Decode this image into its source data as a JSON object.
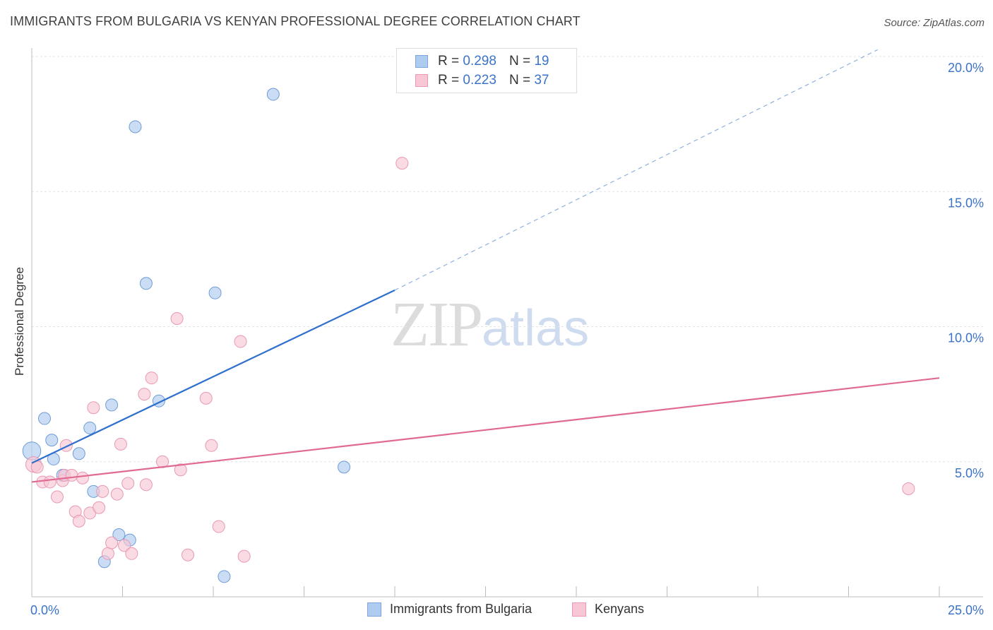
{
  "title": "IMMIGRANTS FROM BULGARIA VS KENYAN PROFESSIONAL DEGREE CORRELATION CHART",
  "source": "Source: ZipAtlas.com",
  "watermark": {
    "zip": "ZIP",
    "atlas": "atlas"
  },
  "legend": {
    "r_label": "R =",
    "n_label": "N =",
    "rows": [
      {
        "r": "0.298",
        "n": "19",
        "color": "#aecbf0",
        "border": "#7ea6dc"
      },
      {
        "r": "0.223",
        "n": "37",
        "color": "#f8c6d4",
        "border": "#e89ab2"
      }
    ]
  },
  "chart_data": {
    "type": "scatter",
    "title": "IMMIGRANTS FROM BULGARIA VS KENYAN PROFESSIONAL DEGREE CORRELATION CHART",
    "xlabel": "",
    "ylabel": "Professional Degree",
    "xlim": [
      0,
      25
    ],
    "ylim": [
      0,
      20
    ],
    "x_tick_labels": [
      "0.0%",
      "25.0%"
    ],
    "y_ticks": [
      5,
      10,
      15,
      20
    ],
    "y_tick_labels": [
      "5.0%",
      "10.0%",
      "15.0%",
      "20.0%"
    ],
    "grid": true,
    "legend_position": "top-center",
    "series": [
      {
        "name": "Immigrants from Bulgaria",
        "color": "#aecbf0",
        "edge": "#6f9bd8",
        "line_color": "#2f6fce",
        "points": [
          [
            0.0,
            5.4,
            1.5
          ],
          [
            0.35,
            6.6,
            1
          ],
          [
            0.55,
            5.8,
            1
          ],
          [
            0.6,
            5.1,
            1
          ],
          [
            0.85,
            4.5,
            1
          ],
          [
            1.3,
            5.3,
            1
          ],
          [
            1.6,
            6.25,
            1
          ],
          [
            1.7,
            3.9,
            1
          ],
          [
            2.2,
            7.1,
            1
          ],
          [
            2.0,
            1.3,
            1
          ],
          [
            2.4,
            2.3,
            1
          ],
          [
            2.7,
            2.1,
            1
          ],
          [
            2.85,
            17.4,
            1
          ],
          [
            3.15,
            11.6,
            1
          ],
          [
            3.5,
            7.25,
            1
          ],
          [
            5.05,
            11.25,
            1
          ],
          [
            5.3,
            0.75,
            1
          ],
          [
            6.65,
            18.6,
            1
          ],
          [
            8.6,
            4.8,
            1
          ]
        ],
        "trend": {
          "x": [
            0.0,
            10.0
          ],
          "y": [
            4.95,
            11.35
          ]
        },
        "trend_dashed": {
          "x": [
            10.0,
            23.3
          ],
          "y": [
            11.35,
            20.25
          ]
        }
      },
      {
        "name": "Kenyans",
        "color": "#f8c6d4",
        "edge": "#e89ab2",
        "line_color": "#e06a92",
        "points": [
          [
            0.05,
            4.9,
            1.3
          ],
          [
            0.15,
            4.8,
            1
          ],
          [
            0.3,
            4.25,
            1
          ],
          [
            0.5,
            4.25,
            1
          ],
          [
            0.7,
            3.7,
            1
          ],
          [
            0.85,
            4.3,
            1
          ],
          [
            0.9,
            4.5,
            1
          ],
          [
            0.95,
            5.6,
            1
          ],
          [
            1.1,
            4.5,
            1
          ],
          [
            1.2,
            3.15,
            1
          ],
          [
            1.3,
            2.8,
            1
          ],
          [
            1.4,
            4.4,
            1
          ],
          [
            1.6,
            3.1,
            1
          ],
          [
            1.7,
            7.0,
            1
          ],
          [
            1.85,
            3.3,
            1
          ],
          [
            1.95,
            3.9,
            1
          ],
          [
            2.1,
            1.6,
            1
          ],
          [
            2.2,
            2.0,
            1
          ],
          [
            2.35,
            3.8,
            1
          ],
          [
            2.45,
            5.65,
            1
          ],
          [
            2.55,
            1.9,
            1
          ],
          [
            2.65,
            4.2,
            1
          ],
          [
            2.75,
            1.6,
            1
          ],
          [
            3.1,
            7.5,
            1
          ],
          [
            3.15,
            4.15,
            1
          ],
          [
            3.3,
            8.1,
            1
          ],
          [
            3.6,
            5.0,
            1
          ],
          [
            4.0,
            10.3,
            1
          ],
          [
            4.1,
            4.7,
            1
          ],
          [
            4.3,
            1.55,
            1
          ],
          [
            4.8,
            7.35,
            1
          ],
          [
            4.95,
            5.6,
            1
          ],
          [
            5.15,
            2.6,
            1
          ],
          [
            5.75,
            9.45,
            1
          ],
          [
            5.85,
            1.5,
            1
          ],
          [
            10.2,
            16.05,
            1
          ],
          [
            24.15,
            4.0,
            1
          ]
        ],
        "trend": {
          "x": [
            0.0,
            25.0
          ],
          "y": [
            4.25,
            8.1
          ]
        }
      }
    ]
  }
}
